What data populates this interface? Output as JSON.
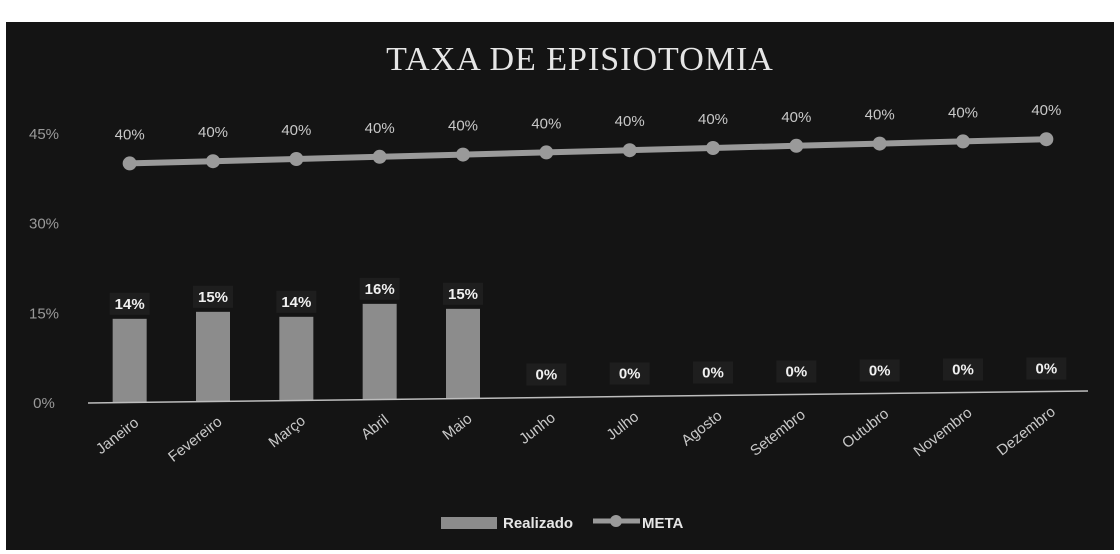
{
  "chart_data": {
    "type": "bar",
    "title": "TAXA DE EPISIOTOMIA",
    "categories": [
      "Janeiro",
      "Fevereiro",
      "Março",
      "Abril",
      "Maio",
      "Junho",
      "Julho",
      "Agosto",
      "Setembro",
      "Outubro",
      "Novembro",
      "Dezembro"
    ],
    "series": [
      {
        "name": "Realizado",
        "type": "bar",
        "values": [
          14,
          15,
          14,
          16,
          15,
          0,
          0,
          0,
          0,
          0,
          0,
          0
        ],
        "labels": [
          "14%",
          "15%",
          "14%",
          "16%",
          "15%",
          "0%",
          "0%",
          "0%",
          "0%",
          "0%",
          "0%",
          "0%"
        ],
        "color": "#8c8c8c"
      },
      {
        "name": "META",
        "type": "line",
        "values": [
          40,
          40,
          40,
          40,
          40,
          40,
          40,
          40,
          40,
          40,
          40,
          40
        ],
        "labels": [
          "40%",
          "40%",
          "40%",
          "40%",
          "40%",
          "40%",
          "40%",
          "40%",
          "40%",
          "40%",
          "40%",
          "40%"
        ],
        "color": "#9a9a9a"
      }
    ],
    "ylim": [
      0,
      45
    ],
    "yticks": [
      0,
      15,
      30,
      45
    ],
    "ytick_labels": [
      "0%",
      "15%",
      "30%",
      "45%"
    ],
    "grid": false,
    "legend": "bottom"
  }
}
